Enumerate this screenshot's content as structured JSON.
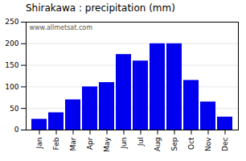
{
  "chart_data": {
    "type": "bar",
    "title": "Shirakawa : precipitation (mm)",
    "categories": [
      "Jan",
      "Feb",
      "Mar",
      "Apr",
      "May",
      "Jun",
      "Jul",
      "Aug",
      "Sep",
      "Oct",
      "Nov",
      "Dec"
    ],
    "values": [
      25,
      40,
      70,
      100,
      110,
      175,
      160,
      200,
      200,
      115,
      65,
      30
    ],
    "color": "#0000ee",
    "ylim": [
      0,
      250
    ],
    "yticks": [
      0,
      50,
      100,
      150,
      200,
      250
    ],
    "grid": true,
    "annotations": [
      "www.allmetsat.com"
    ]
  }
}
